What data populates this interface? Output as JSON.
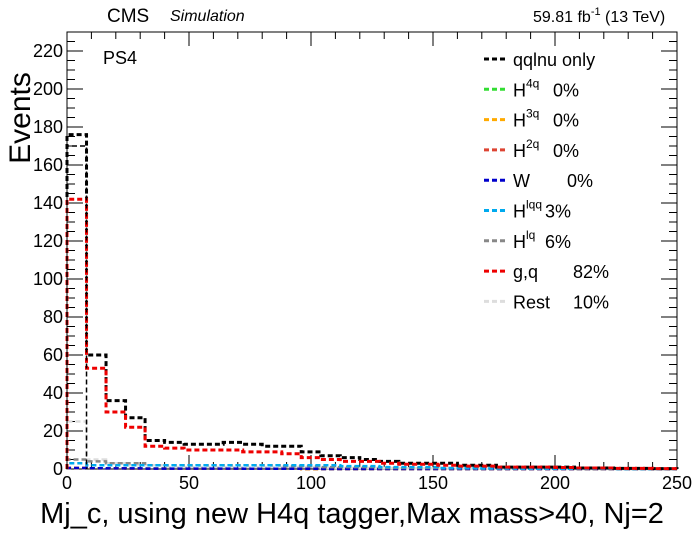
{
  "header": {
    "cms_label": "CMS",
    "simulation_label": "Simulation",
    "lumi_value": "59.81 fb",
    "lumi_exp": "-1",
    "lumi_energy": " (13 TeV)"
  },
  "region_label": "PS4",
  "colors": {
    "qqlnu": "#000000",
    "H4q": "#33dd33",
    "H3q": "#ffaa00",
    "H2q": "#dd4433",
    "W": "#0000cc",
    "Hlqq": "#00aaee",
    "Hlq": "#888888",
    "gq": "#ee0000",
    "Rest": "#dddddd"
  },
  "chart_data": {
    "type": "histogram",
    "xlabel": "Mj_c, using new H4q tagger,Max mass>40, Nj=2",
    "ylabel": "Events",
    "xlim": [
      0,
      250
    ],
    "ylim": [
      0,
      230
    ],
    "x_ticks": [
      0,
      50,
      100,
      150,
      200,
      250
    ],
    "x_tick_labels": [
      "0",
      "50",
      "100",
      "150",
      "200",
      "250"
    ],
    "y_ticks": [
      0,
      20,
      40,
      60,
      80,
      100,
      120,
      140,
      160,
      180,
      200,
      220
    ],
    "y_tick_labels": [
      "0",
      "20",
      "40",
      "60",
      "80",
      "100",
      "120",
      "140",
      "160",
      "180",
      "200",
      "220"
    ],
    "bin_edges": [
      0,
      8,
      16,
      24,
      32,
      40,
      48,
      56,
      64,
      72,
      80,
      88,
      96,
      104,
      112,
      120,
      128,
      136,
      144,
      152,
      160,
      168,
      176,
      184,
      192,
      200,
      208,
      216,
      224,
      232,
      240,
      250
    ],
    "series": [
      {
        "key": "qqlnu",
        "name": "qqlnu only",
        "sup": "",
        "pct": "",
        "color": "#000000",
        "values": [
          176,
          60,
          36,
          27,
          15,
          14,
          13,
          13,
          14,
          13,
          12,
          12,
          9,
          7,
          6,
          5,
          4,
          3,
          3,
          3,
          2,
          2,
          1,
          1,
          1,
          1,
          0.5,
          0.5,
          0.3,
          0.3,
          0.2
        ]
      },
      {
        "key": "H4q",
        "name": "H",
        "sup": "4q",
        "pct": "0%",
        "color": "#33dd33",
        "values": [
          0.5,
          0.3,
          0.3,
          0.2,
          0.2,
          0.1,
          0.1,
          0.1,
          0.1,
          0.1,
          0.1,
          0.1,
          0,
          0,
          0,
          0,
          0,
          0,
          0,
          0,
          0,
          0,
          0,
          0,
          0,
          0,
          0,
          0,
          0,
          0,
          0
        ]
      },
      {
        "key": "H3q",
        "name": "H",
        "sup": "3q",
        "pct": "0%",
        "color": "#ffaa00",
        "values": [
          0.5,
          0.3,
          0.3,
          0.2,
          0.2,
          0.1,
          0.1,
          0.1,
          0.1,
          0.1,
          0.1,
          0.1,
          0,
          0,
          0,
          0,
          0,
          0,
          0,
          0,
          0,
          0,
          0,
          0,
          0,
          0,
          0,
          0,
          0,
          0,
          0
        ]
      },
      {
        "key": "H2q",
        "name": "H",
        "sup": "2q",
        "pct": "0%",
        "color": "#dd4433",
        "values": [
          0.5,
          0.3,
          0.3,
          0.2,
          0.2,
          0.1,
          0.1,
          0.1,
          0.1,
          0.1,
          0.1,
          0.1,
          0,
          0,
          0,
          0,
          0,
          0,
          0,
          0,
          0,
          0,
          0,
          0,
          0,
          0,
          0,
          0,
          0,
          0,
          0
        ]
      },
      {
        "key": "W",
        "name": "W",
        "sup": "",
        "pct": "0%",
        "color": "#0000cc",
        "values": [
          0.5,
          0.4,
          0.3,
          0.3,
          0.2,
          0.2,
          0.2,
          0.2,
          0.2,
          0.1,
          0.1,
          0.1,
          0.1,
          0,
          0,
          0,
          0,
          0,
          0,
          0,
          0,
          0,
          0,
          0,
          0,
          0,
          0,
          0,
          0,
          0,
          0
        ]
      },
      {
        "key": "Hlqq",
        "name": "H",
        "sup": "lqq",
        "pct": "3%",
        "color": "#00aaee",
        "values": [
          3,
          2,
          2,
          2,
          2,
          2,
          2,
          2,
          2,
          2,
          2,
          2,
          2,
          2,
          1.5,
          1.5,
          1,
          1,
          1,
          0.5,
          0.5,
          0.3,
          0.3,
          0.2,
          0.2,
          0.1,
          0.1,
          0.1,
          0,
          0,
          0
        ]
      },
      {
        "key": "Hlq",
        "name": "H",
        "sup": "lq",
        "pct": "6%",
        "color": "#888888",
        "values": [
          5,
          4,
          3,
          3,
          2,
          2,
          2,
          2,
          2,
          2,
          2,
          1.5,
          1.5,
          1,
          1,
          1,
          0.5,
          0.5,
          0.5,
          0.3,
          0.3,
          0.2,
          0.2,
          0.1,
          0.1,
          0.1,
          0,
          0,
          0,
          0,
          0
        ]
      },
      {
        "key": "gq",
        "name": "g,q",
        "sup": "",
        "pct": "82%",
        "color": "#ee0000",
        "values": [
          142,
          53,
          30,
          22,
          12,
          11,
          10,
          10,
          10,
          9,
          9,
          8,
          6,
          5,
          4,
          4,
          3,
          2.5,
          2.5,
          2,
          1.5,
          1.5,
          1,
          1,
          1,
          0.8,
          0.5,
          0.5,
          0.3,
          0.3,
          0.2
        ]
      },
      {
        "key": "Rest",
        "name": "Rest",
        "sup": "",
        "pct": "10%",
        "color": "#dddddd",
        "values": [
          25,
          5,
          3,
          2,
          2,
          1,
          1,
          1,
          1,
          1,
          1,
          1,
          1,
          0.5,
          0.5,
          0.5,
          0.5,
          0.3,
          0.3,
          0.2,
          0.2,
          0.1,
          0.1,
          0.1,
          0.1,
          0,
          0,
          0,
          0,
          0,
          0
        ]
      }
    ],
    "extra_series": [
      {
        "key": "qqlnu_inner",
        "color": "#000000",
        "values": [
          170
        ],
        "bin_edges": [
          0,
          8
        ]
      }
    ]
  }
}
